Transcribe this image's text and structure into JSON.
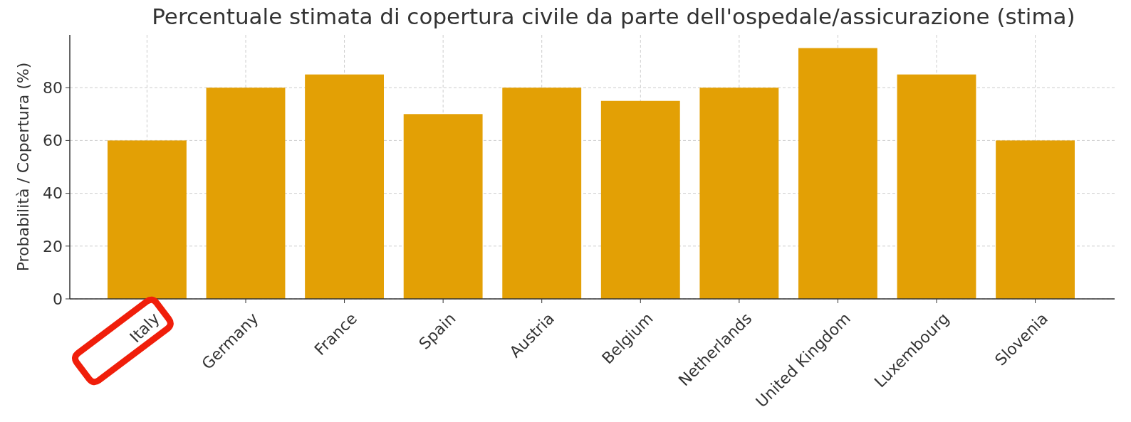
{
  "chart_data": {
    "type": "bar",
    "title": "Percentuale stimata di copertura civile da parte dell'ospedale/assicurazione (stima)",
    "ylabel": "Probabilità / Copertura (%)",
    "categories": [
      "Italy",
      "Germany",
      "France",
      "Spain",
      "Austria",
      "Belgium",
      "Netherlands",
      "United Kingdom",
      "Luxembourg",
      "Slovenia"
    ],
    "values": [
      60,
      80,
      85,
      70,
      80,
      75,
      80,
      95,
      85,
      60
    ],
    "color": "#e3a005",
    "ylim": [
      0,
      100
    ],
    "yticks": [
      0,
      20,
      40,
      60,
      80
    ],
    "grid": true
  }
}
